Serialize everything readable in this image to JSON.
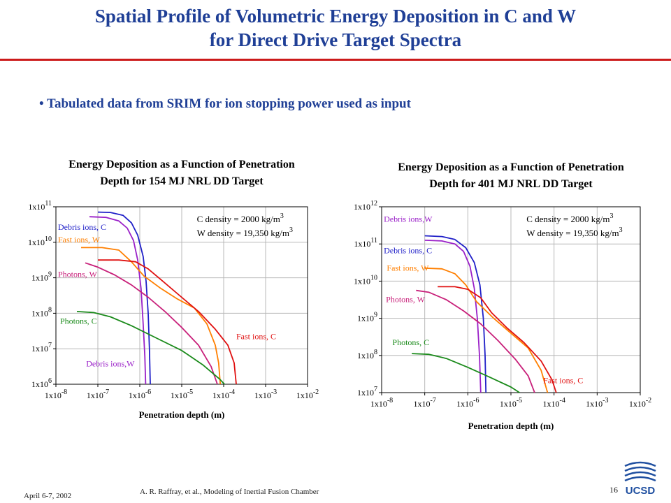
{
  "slide": {
    "title_line1": "Spatial Profile of Volumetric Energy Deposition in C and W",
    "title_line2": "for Direct Drive Target Spectra",
    "bullet": "• Tabulated data from SRIM for ion stopping power used as input",
    "footer_left": "April 6-7, 2002",
    "footer_center": "A. R. Raffray, et al., Modeling of Inertial Fusion Chamber",
    "page_number": "16",
    "logo_text": "UCSD",
    "colors": {
      "title": "#1f3f96",
      "rule": "#cc1a1a",
      "logo": "#1f4fa0"
    }
  },
  "chart_data": [
    {
      "type": "line",
      "title_line1": "Energy Deposition as a Function of Penetration",
      "title_line2": "Depth for 154 MJ NRL DD Target",
      "xlabel": "Penetration depth (m)",
      "x_scale": "log",
      "y_scale": "log",
      "xlim_exp": [
        -8,
        -2
      ],
      "ylim_exp": [
        6,
        11
      ],
      "x_tick_labels": [
        {
          "base": "1x10",
          "exp": "-8"
        },
        {
          "base": "1x10",
          "exp": "-7"
        },
        {
          "base": "1x10",
          "exp": "-6"
        },
        {
          "base": "1x10",
          "exp": "-5"
        },
        {
          "base": "1x10",
          "exp": "-4"
        },
        {
          "base": "1x10",
          "exp": "-3"
        },
        {
          "base": "1x10",
          "exp": "-2"
        }
      ],
      "y_tick_labels": [
        {
          "base": "1x10",
          "exp": "6"
        },
        {
          "base": "1x10",
          "exp": "7"
        },
        {
          "base": "1x10",
          "exp": "8"
        },
        {
          "base": "1x10",
          "exp": "9"
        },
        {
          "base": "1x10",
          "exp": "10"
        },
        {
          "base": "1x10",
          "exp": "11"
        }
      ],
      "grid": true,
      "annotation_c_density": "C density = 2000 kg/m",
      "annotation_w_density": "W density = 19,350 kg/m",
      "annotation_exp": "3",
      "series": [
        {
          "name": "Debris ions, C",
          "color": "#2020c8",
          "label": {
            "text": "Debris ions, C",
            "x": -7.95,
            "y": 10.35,
            "color": "#2020c8"
          },
          "log_points": [
            [
              -7.0,
              10.85
            ],
            [
              -6.7,
              10.84
            ],
            [
              -6.4,
              10.76
            ],
            [
              -6.2,
              10.55
            ],
            [
              -6.05,
              10.2
            ],
            [
              -5.92,
              9.6
            ],
            [
              -5.85,
              8.9
            ],
            [
              -5.8,
              8.0
            ],
            [
              -5.77,
              7.0
            ],
            [
              -5.75,
              6.0
            ]
          ]
        },
        {
          "name": "Debris ions,W",
          "color": "#9a20c8",
          "label": {
            "text": "Debris ions,W",
            "x": -7.28,
            "y": 6.5,
            "color": "#9a20c8"
          },
          "log_points": [
            [
              -7.2,
              10.72
            ],
            [
              -6.8,
              10.7
            ],
            [
              -6.5,
              10.6
            ],
            [
              -6.3,
              10.4
            ],
            [
              -6.15,
              10.05
            ],
            [
              -6.05,
              9.5
            ],
            [
              -5.97,
              8.7
            ],
            [
              -5.92,
              7.7
            ],
            [
              -5.88,
              6.8
            ],
            [
              -5.86,
              6.0
            ]
          ]
        },
        {
          "name": "Fast ions, W",
          "color": "#ff7f00",
          "label": {
            "text": "Fast ions, W",
            "x": -7.95,
            "y": 10.0,
            "color": "#ff7f00"
          },
          "log_points": [
            [
              -7.4,
              9.85
            ],
            [
              -6.9,
              9.85
            ],
            [
              -6.5,
              9.78
            ],
            [
              -6.2,
              9.45
            ],
            [
              -5.9,
              9.05
            ],
            [
              -5.5,
              8.7
            ],
            [
              -5.1,
              8.4
            ],
            [
              -4.7,
              8.15
            ],
            [
              -4.4,
              7.7
            ],
            [
              -4.2,
              7.1
            ],
            [
              -4.12,
              6.6
            ],
            [
              -4.08,
              6.0
            ]
          ]
        },
        {
          "name": "Fast ions, C",
          "color": "#e01010",
          "label": {
            "text": "Fast ions, C",
            "x": -3.7,
            "y": 7.27,
            "color": "#e01010"
          },
          "log_points": [
            [
              -7.0,
              9.5
            ],
            [
              -6.5,
              9.5
            ],
            [
              -6.1,
              9.45
            ],
            [
              -5.8,
              9.25
            ],
            [
              -5.5,
              8.95
            ],
            [
              -5.1,
              8.55
            ],
            [
              -4.6,
              8.05
            ],
            [
              -4.2,
              7.55
            ],
            [
              -3.9,
              7.1
            ],
            [
              -3.75,
              6.6
            ],
            [
              -3.7,
              6.0
            ]
          ]
        },
        {
          "name": "Photons, W",
          "color": "#c8207a",
          "label": {
            "text": "Photons, W",
            "x": -7.95,
            "y": 9.02,
            "color": "#c8207a"
          },
          "log_points": [
            [
              -7.3,
              9.42
            ],
            [
              -7.0,
              9.3
            ],
            [
              -6.6,
              9.08
            ],
            [
              -6.2,
              8.8
            ],
            [
              -5.8,
              8.45
            ],
            [
              -5.4,
              8.05
            ],
            [
              -5.0,
              7.6
            ],
            [
              -4.6,
              7.1
            ],
            [
              -4.3,
              6.5
            ],
            [
              -4.15,
              6.0
            ]
          ]
        },
        {
          "name": "Photons, C",
          "color": "#1a8a1a",
          "label": {
            "text": "Photons, C",
            "x": -7.9,
            "y": 7.7,
            "color": "#1a8a1a"
          },
          "log_points": [
            [
              -7.5,
              8.05
            ],
            [
              -7.1,
              8.02
            ],
            [
              -6.7,
              7.9
            ],
            [
              -6.2,
              7.65
            ],
            [
              -5.6,
              7.3
            ],
            [
              -5.0,
              6.95
            ],
            [
              -4.5,
              6.55
            ],
            [
              -4.1,
              6.15
            ],
            [
              -3.98,
              6.0
            ]
          ]
        }
      ]
    },
    {
      "type": "line",
      "title_line1": "Energy Deposition as a Function of Penetration",
      "title_line2": "Depth for 401 MJ NRL DD Target",
      "xlabel": "Penetration depth (m)",
      "x_scale": "log",
      "y_scale": "log",
      "xlim_exp": [
        -8,
        -2
      ],
      "ylim_exp": [
        7,
        12
      ],
      "x_tick_labels": [
        {
          "base": "1x10",
          "exp": "-8"
        },
        {
          "base": "1x10",
          "exp": "-7"
        },
        {
          "base": "1x10",
          "exp": "-6"
        },
        {
          "base": "1x10",
          "exp": "-5"
        },
        {
          "base": "1x10",
          "exp": "-4"
        },
        {
          "base": "1x10",
          "exp": "-3"
        },
        {
          "base": "1x10",
          "exp": "-2"
        }
      ],
      "y_tick_labels": [
        {
          "base": "1x10",
          "exp": "7"
        },
        {
          "base": "1x10",
          "exp": "8"
        },
        {
          "base": "1x10",
          "exp": "9"
        },
        {
          "base": "1x10",
          "exp": "10"
        },
        {
          "base": "1x10",
          "exp": "11"
        },
        {
          "base": "1x10",
          "exp": "12"
        }
      ],
      "grid": true,
      "annotation_c_density": "C density = 2000 kg/m",
      "annotation_w_density": "W density = 19,350 kg/m",
      "annotation_exp": "3",
      "series": [
        {
          "name": "Debris ions,W",
          "color": "#9a20c8",
          "label": {
            "text": "Debris ions,W",
            "x": -7.95,
            "y": 11.6,
            "color": "#9a20c8"
          },
          "log_points": [
            [
              -7.0,
              11.1
            ],
            [
              -6.6,
              11.08
            ],
            [
              -6.3,
              11.0
            ],
            [
              -6.1,
              10.8
            ],
            [
              -5.95,
              10.4
            ],
            [
              -5.85,
              9.8
            ],
            [
              -5.78,
              9.0
            ],
            [
              -5.73,
              8.0
            ],
            [
              -5.7,
              7.0
            ]
          ]
        },
        {
          "name": "Debris ions, C",
          "color": "#2020c8",
          "label": {
            "text": "Debris ions, C",
            "x": -7.95,
            "y": 10.75,
            "color": "#2020c8"
          },
          "log_points": [
            [
              -7.0,
              11.22
            ],
            [
              -6.6,
              11.2
            ],
            [
              -6.3,
              11.12
            ],
            [
              -6.05,
              10.9
            ],
            [
              -5.85,
              10.5
            ],
            [
              -5.72,
              9.9
            ],
            [
              -5.64,
              9.0
            ],
            [
              -5.6,
              8.0
            ],
            [
              -5.58,
              7.0
            ]
          ]
        },
        {
          "name": "Fast ions, W",
          "color": "#ff7f00",
          "label": {
            "text": "Fast ions, W",
            "x": -7.88,
            "y": 10.28,
            "color": "#ff7f00"
          },
          "log_points": [
            [
              -7.0,
              10.35
            ],
            [
              -6.6,
              10.33
            ],
            [
              -6.3,
              10.2
            ],
            [
              -6.05,
              9.9
            ],
            [
              -5.8,
              9.45
            ],
            [
              -5.4,
              9.0
            ],
            [
              -5.0,
              8.6
            ],
            [
              -4.6,
              8.2
            ],
            [
              -4.3,
              7.6
            ],
            [
              -4.15,
              7.0
            ]
          ]
        },
        {
          "name": "Fast ions, C",
          "color": "#e01010",
          "label": {
            "text": "Fast ions, C",
            "x": -4.25,
            "y": 7.25,
            "color": "#e01010"
          },
          "log_points": [
            [
              -6.7,
              9.85
            ],
            [
              -6.3,
              9.85
            ],
            [
              -6.0,
              9.78
            ],
            [
              -5.7,
              9.55
            ],
            [
              -5.45,
              9.15
            ],
            [
              -5.1,
              8.75
            ],
            [
              -4.7,
              8.35
            ],
            [
              -4.3,
              7.85
            ],
            [
              -4.05,
              7.35
            ],
            [
              -3.95,
              7.0
            ]
          ]
        },
        {
          "name": "Photons, W",
          "color": "#c8207a",
          "label": {
            "text": "Photons, W",
            "x": -7.9,
            "y": 9.43,
            "color": "#c8207a"
          },
          "log_points": [
            [
              -7.2,
              9.75
            ],
            [
              -6.9,
              9.7
            ],
            [
              -6.5,
              9.5
            ],
            [
              -6.1,
              9.2
            ],
            [
              -5.7,
              8.85
            ],
            [
              -5.3,
              8.4
            ],
            [
              -4.9,
              7.9
            ],
            [
              -4.6,
              7.45
            ],
            [
              -4.45,
              7.0
            ]
          ]
        },
        {
          "name": "Photons, C",
          "color": "#1a8a1a",
          "label": {
            "text": "Photons, C",
            "x": -7.75,
            "y": 8.28,
            "color": "#1a8a1a"
          },
          "log_points": [
            [
              -7.3,
              8.05
            ],
            [
              -6.9,
              8.03
            ],
            [
              -6.5,
              7.92
            ],
            [
              -6.0,
              7.68
            ],
            [
              -5.5,
              7.42
            ],
            [
              -5.0,
              7.15
            ],
            [
              -4.8,
              7.0
            ]
          ]
        }
      ]
    }
  ]
}
